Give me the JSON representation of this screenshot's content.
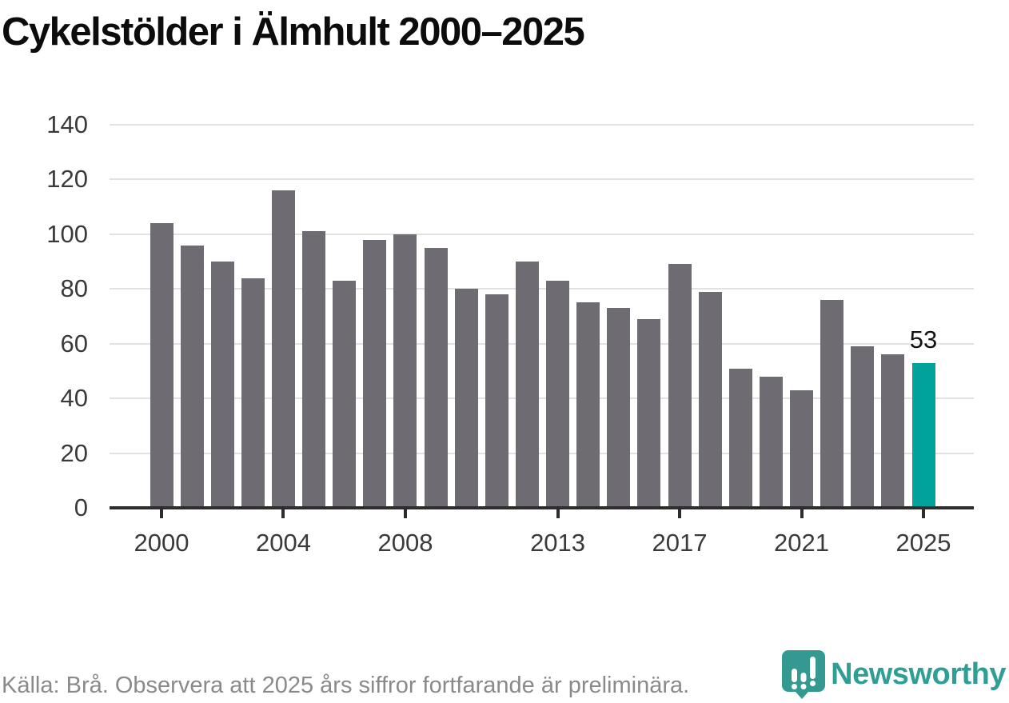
{
  "title": "Cykelstölder i Älmhult 2000–2025",
  "footer": {
    "source_note": "Källa: Brå. Observera att 2025 års siffror fortfarande är preliminära."
  },
  "branding": {
    "name": "Newsworthy",
    "logo_icon": "bar-chart-map-pin-icon",
    "logo_color": "#349a91",
    "text_color": "#2f9e94"
  },
  "colors": {
    "bar_default": "#6e6b73",
    "bar_highlight": "#00a39b",
    "gridline": "#e2e2e2",
    "axis": "#2d2d2d",
    "tick_label": "#3a3a3a",
    "source_text": "#8a8a8a",
    "title_text": "#0c0c0c"
  },
  "chart_data": {
    "type": "bar",
    "title": "Cykelstölder i Älmhult 2000–2025",
    "xlabel": "",
    "ylabel": "",
    "x": [
      2000,
      2001,
      2002,
      2003,
      2004,
      2005,
      2006,
      2007,
      2008,
      2009,
      2010,
      2011,
      2012,
      2013,
      2014,
      2015,
      2016,
      2017,
      2018,
      2019,
      2020,
      2021,
      2022,
      2023,
      2024,
      2025
    ],
    "values": [
      104,
      96,
      90,
      84,
      116,
      101,
      83,
      98,
      100,
      95,
      80,
      78,
      90,
      83,
      75,
      73,
      69,
      89,
      79,
      51,
      48,
      43,
      76,
      59,
      56,
      53
    ],
    "highlight_year": 2025,
    "value_labels": [
      {
        "year": 2025,
        "text": "53"
      }
    ],
    "xticks": [
      2000,
      2004,
      2008,
      2013,
      2017,
      2021,
      2025
    ],
    "yticks": [
      0,
      20,
      40,
      60,
      80,
      100,
      120,
      140
    ],
    "ylim": [
      0,
      140
    ],
    "grid": "horizontal",
    "legend": "none"
  }
}
